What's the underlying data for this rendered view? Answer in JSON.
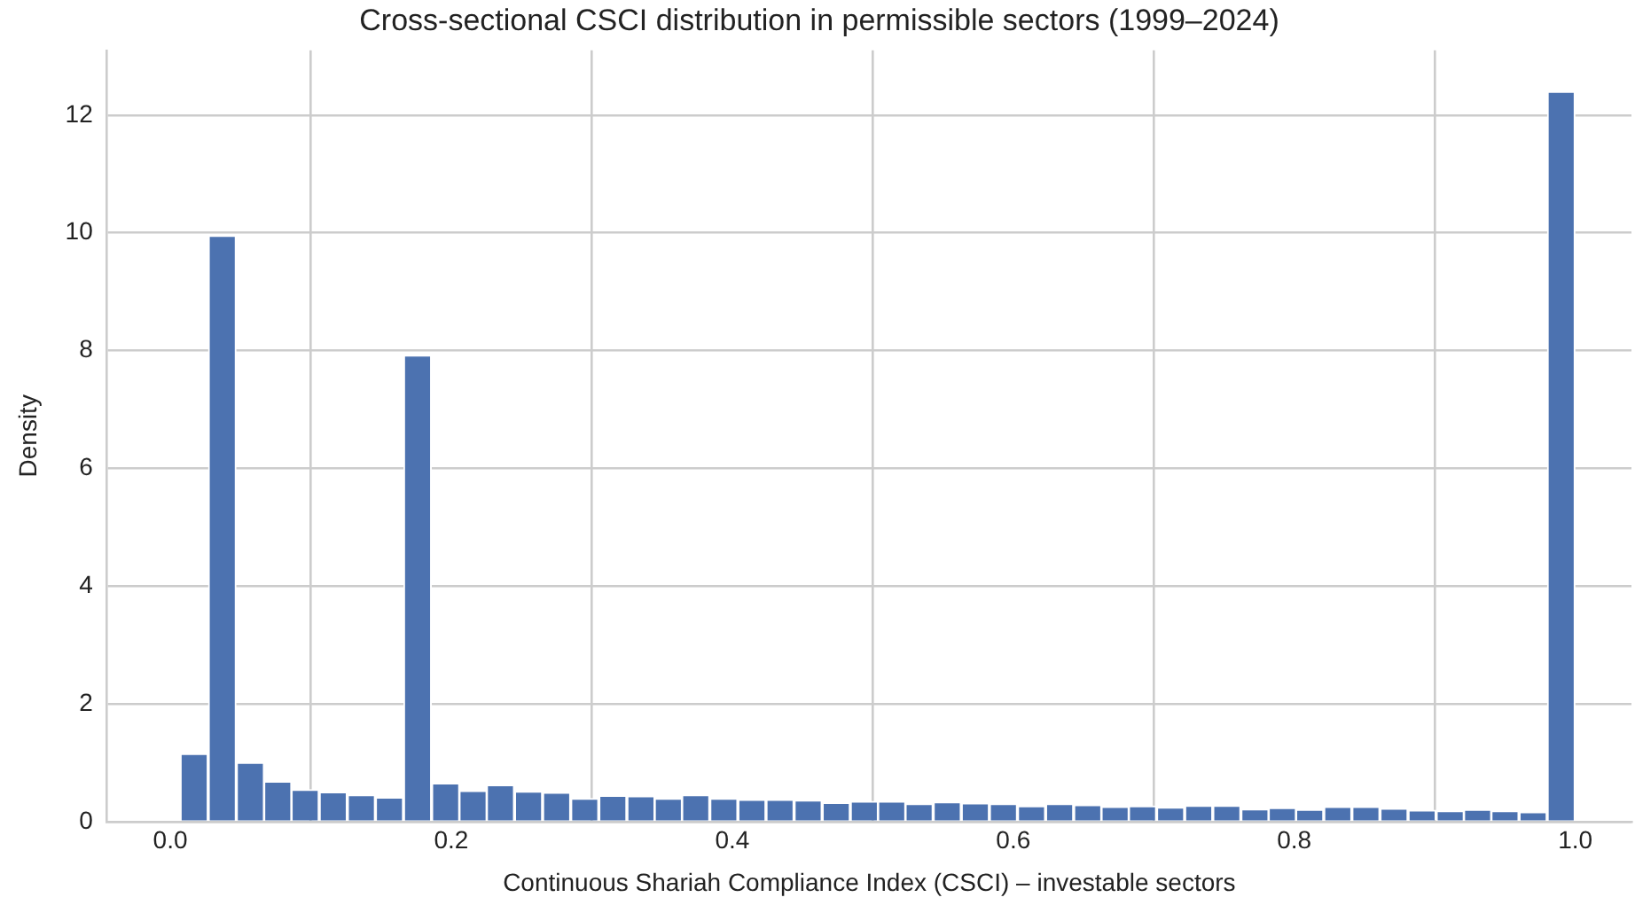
{
  "chart_data": {
    "type": "histogram",
    "title": "Cross-sectional CSCI distribution in permissible sectors (1999–2024)",
    "xlabel": "Continuous Shariah Compliance Index (CSCI) – investable sectors",
    "ylabel": "Density",
    "color": "#4c72b0",
    "bins": [
      0.007,
      0.027,
      0.047,
      0.067,
      0.086,
      0.106,
      0.126,
      0.146,
      0.166,
      0.186,
      0.206,
      0.225,
      0.245,
      0.265,
      0.285,
      0.305,
      0.325,
      0.345,
      0.364,
      0.384,
      0.404,
      0.424,
      0.444,
      0.464,
      0.484,
      0.504,
      0.523,
      0.543,
      0.563,
      0.583,
      0.603,
      0.623,
      0.643,
      0.663,
      0.682,
      0.702,
      0.722,
      0.742,
      0.762,
      0.782,
      0.801,
      0.821,
      0.841,
      0.861,
      0.881,
      0.901,
      0.921,
      0.94,
      0.96,
      0.98,
      1.0
    ],
    "values": [
      1.15,
      9.95,
      1.0,
      0.68,
      0.54,
      0.5,
      0.45,
      0.41,
      7.92,
      0.65,
      0.52,
      0.62,
      0.51,
      0.49,
      0.39,
      0.44,
      0.43,
      0.39,
      0.45,
      0.39,
      0.37,
      0.37,
      0.36,
      0.32,
      0.34,
      0.34,
      0.3,
      0.33,
      0.31,
      0.3,
      0.26,
      0.3,
      0.28,
      0.25,
      0.26,
      0.24,
      0.27,
      0.27,
      0.21,
      0.23,
      0.2,
      0.25,
      0.25,
      0.22,
      0.19,
      0.18,
      0.2,
      0.18,
      0.16,
      12.4
    ],
    "xlim": [
      -0.045,
      1.04
    ],
    "xticks": [
      {
        "value": 0,
        "label": "0.0"
      },
      0.2,
      0.4,
      0.6,
      0.8,
      {
        "value": 1,
        "label": "1.0"
      }
    ],
    "ylim": [
      0,
      13.1
    ],
    "yticks": [
      0,
      2,
      4,
      6,
      8,
      10,
      12
    ],
    "grid": true,
    "legend": false
  }
}
